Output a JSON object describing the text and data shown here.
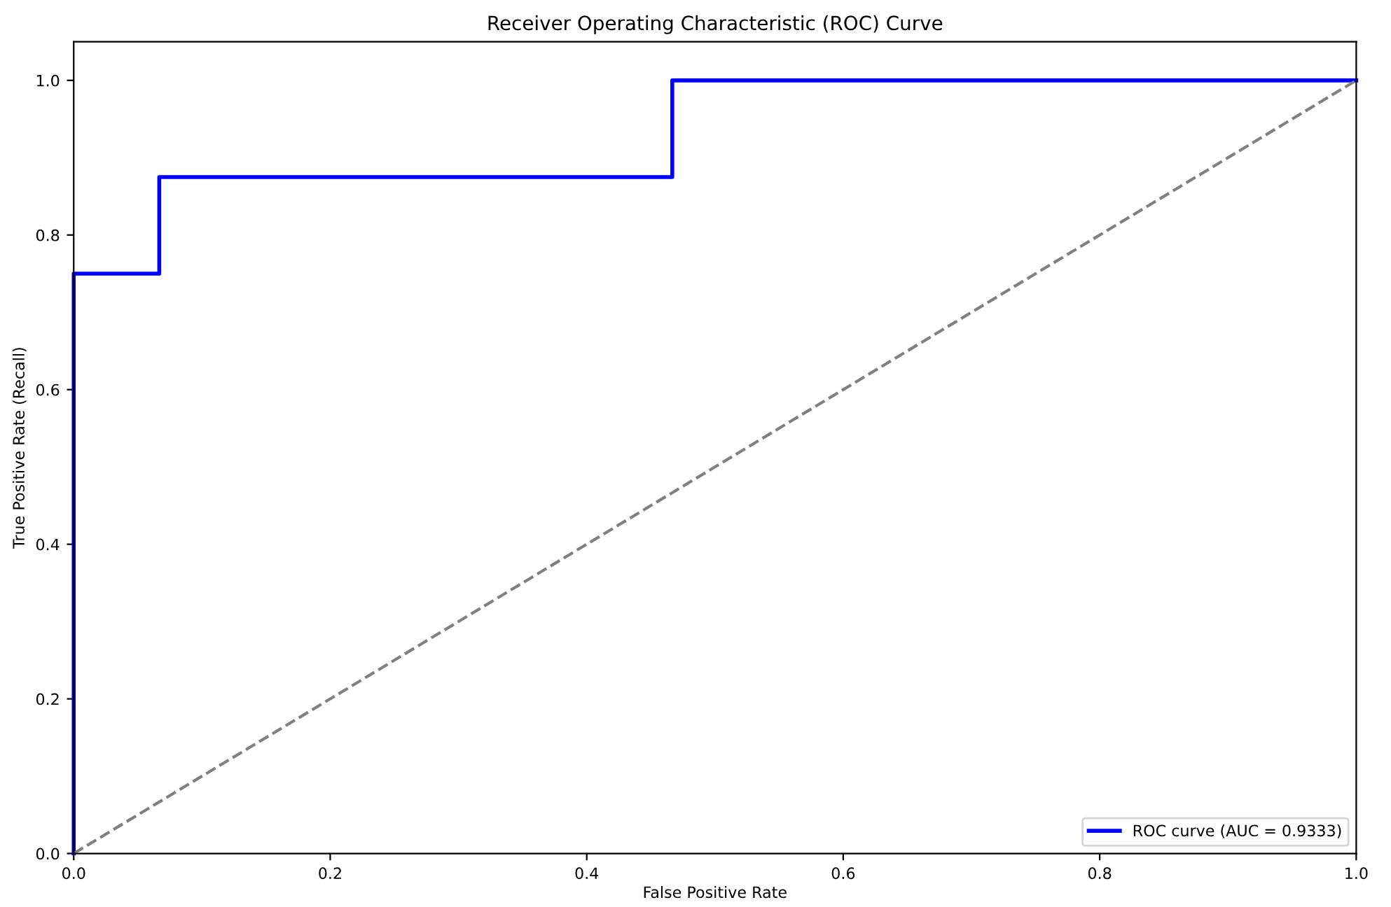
{
  "chart_data": {
    "type": "step",
    "title": "Receiver Operating Characteristic (ROC) Curve",
    "xlabel": "False Positive Rate",
    "ylabel": "True Positive Rate (Recall)",
    "series": [
      {
        "name": "ROC curve (AUC = 0.9333)",
        "color": "#0000ff",
        "x": [
          0,
          0,
          0.0667,
          0.4667,
          1
        ],
        "values": [
          0,
          0.75,
          0.875,
          1,
          1
        ],
        "line_style": "solid"
      },
      {
        "color": "#808080",
        "type": "line",
        "x": [
          0,
          1
        ],
        "values": [
          0,
          1
        ],
        "line_style": "dashed"
      }
    ],
    "xlim": [
      0,
      1
    ],
    "ylim": [
      0,
      1.05
    ],
    "xticks": [
      {
        "value": 0,
        "label": "0.0"
      },
      {
        "value": 0.2,
        "label": "0.2"
      },
      {
        "value": 0.4,
        "label": "0.4"
      },
      {
        "value": 0.6,
        "label": "0.6"
      },
      {
        "value": 0.8,
        "label": "0.8"
      },
      {
        "value": 1,
        "label": "1.0"
      }
    ],
    "yticks": [
      {
        "value": 0,
        "label": "0.0"
      },
      {
        "value": 0.2,
        "label": "0.2"
      },
      {
        "value": 0.4,
        "label": "0.4"
      },
      {
        "value": 0.6,
        "label": "0.6"
      },
      {
        "value": 0.8,
        "label": "0.8"
      },
      {
        "value": 1,
        "label": "1.0"
      }
    ],
    "grid": false,
    "legend": "bottom right",
    "marker": "none"
  }
}
